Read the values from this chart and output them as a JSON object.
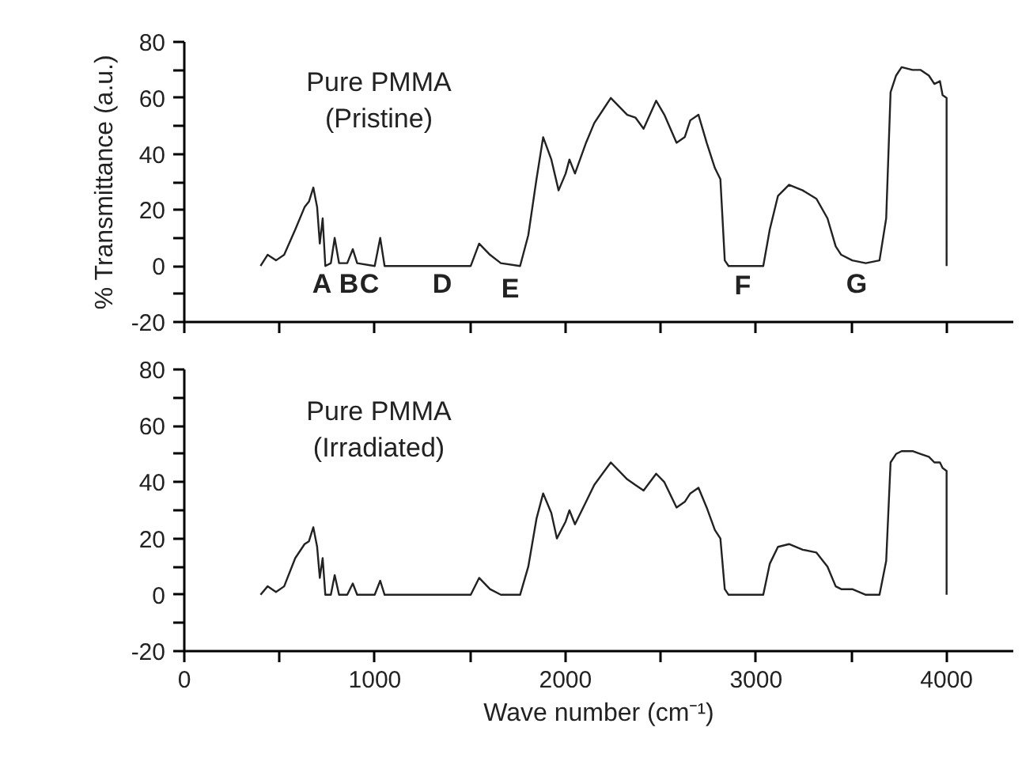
{
  "chart_data": [
    {
      "type": "line",
      "ylabel": "% Transmittance (a.u.)",
      "tick_labels": "y",
      "grid": false,
      "marker": "none",
      "line_style": "solid",
      "annotations": [
        "Pure PMMA\n(Pristine)",
        "A",
        "B",
        "C",
        "D",
        "E",
        "F",
        "G"
      ],
      "xlim": [
        0,
        4350
      ],
      "xticks": [
        0,
        {
          "value": 500,
          "label": null
        },
        1000,
        {
          "value": 1500,
          "label": null
        },
        2000,
        {
          "value": 2500,
          "label": null
        },
        3000,
        {
          "value": 3500,
          "label": null
        },
        4000
      ],
      "ylim": [
        -20,
        80
      ],
      "yticks": [
        -20,
        {
          "value": -10,
          "label": null
        },
        0,
        {
          "value": 10,
          "label": null
        },
        20,
        {
          "value": 30,
          "label": null
        },
        40,
        {
          "value": 50,
          "label": null
        },
        60,
        {
          "value": 70,
          "label": null
        },
        80
      ],
      "series": [
        {
          "color": "#222222",
          "x": [
            400,
            437,
            481,
            524,
            582,
            631,
            654,
            677,
            697,
            711,
            726,
            740,
            769,
            789,
            812,
            855,
            884,
            907,
            999,
            1028,
            1051,
            1503,
            1547,
            1604,
            1661,
            1762,
            1805,
            1848,
            1883,
            1926,
            1964,
            2001,
            2021,
            2050,
            2108,
            2151,
            2238,
            2324,
            2367,
            2410,
            2476,
            2519,
            2583,
            2626,
            2655,
            2698,
            2741,
            2784,
            2813,
            2836,
            2856,
            3038,
            3072,
            3115,
            3173,
            3245,
            3317,
            3375,
            3418,
            3447,
            3505,
            3576,
            3648,
            3683,
            3706,
            3735,
            3764,
            3821,
            3864,
            3907,
            3936,
            3965,
            3979,
            4000,
            4000
          ],
          "values": [
            0,
            4,
            2,
            4,
            13,
            21,
            23,
            28,
            21,
            8,
            17,
            0,
            1,
            10,
            1,
            1,
            6,
            1,
            0,
            10,
            0,
            0,
            8,
            4,
            1,
            0,
            11,
            31,
            46,
            38,
            27,
            33,
            38,
            33,
            44,
            51,
            60,
            54,
            53,
            49,
            59,
            54,
            44,
            46,
            52,
            54,
            44,
            35,
            31,
            2,
            0,
            0,
            13,
            25,
            29,
            27,
            24,
            17,
            7,
            4,
            2,
            1,
            2,
            17,
            62,
            68,
            71,
            70,
            70,
            68,
            65,
            66,
            61,
            60,
            0
          ]
        }
      ]
    },
    {
      "type": "line",
      "xlabel": "Wave number (cm⁻¹)",
      "grid": false,
      "marker": "none",
      "line_style": "solid",
      "annotations": [
        "Pure PMMA\n(Irradiated)"
      ],
      "xlim": [
        0,
        4350
      ],
      "xticks": [
        0,
        {
          "value": 500,
          "label": null
        },
        1000,
        {
          "value": 1500,
          "label": null
        },
        2000,
        {
          "value": 2500,
          "label": null
        },
        3000,
        {
          "value": 3500,
          "label": null
        },
        4000
      ],
      "ylim": [
        -20,
        80
      ],
      "yticks": [
        -20,
        {
          "value": -10,
          "label": null
        },
        0,
        {
          "value": 10,
          "label": null
        },
        20,
        {
          "value": 30,
          "label": null
        },
        40,
        {
          "value": 50,
          "label": null
        },
        60,
        {
          "value": 70,
          "label": null
        },
        80
      ],
      "series": [
        {
          "color": "#222222",
          "x": [
            400,
            437,
            481,
            524,
            582,
            631,
            654,
            677,
            697,
            711,
            726,
            740,
            769,
            789,
            812,
            855,
            884,
            907,
            999,
            1028,
            1051,
            1503,
            1547,
            1604,
            1661,
            1762,
            1805,
            1848,
            1883,
            1926,
            1955,
            2001,
            2021,
            2050,
            2108,
            2151,
            2238,
            2324,
            2367,
            2410,
            2476,
            2519,
            2583,
            2626,
            2655,
            2698,
            2741,
            2784,
            2813,
            2836,
            2856,
            3038,
            3072,
            3115,
            3173,
            3245,
            3317,
            3375,
            3418,
            3447,
            3505,
            3576,
            3648,
            3683,
            3706,
            3735,
            3764,
            3821,
            3864,
            3907,
            3936,
            3965,
            3979,
            4000,
            4000
          ],
          "values": [
            0,
            3,
            1,
            3,
            13,
            18,
            19,
            24,
            17,
            6,
            13,
            0,
            0,
            7,
            0,
            0,
            4,
            0,
            0,
            5,
            0,
            0,
            6,
            2,
            0,
            0,
            10,
            27,
            36,
            29,
            20,
            26,
            30,
            25,
            33,
            39,
            47,
            41,
            39,
            37,
            43,
            40,
            31,
            33,
            36,
            38,
            31,
            23,
            20,
            2,
            0,
            0,
            11,
            17,
            18,
            16,
            15,
            10,
            3,
            2,
            2,
            0,
            0,
            12,
            47,
            50,
            51,
            51,
            50,
            49,
            47,
            47,
            45,
            44,
            0
          ]
        }
      ]
    }
  ]
}
